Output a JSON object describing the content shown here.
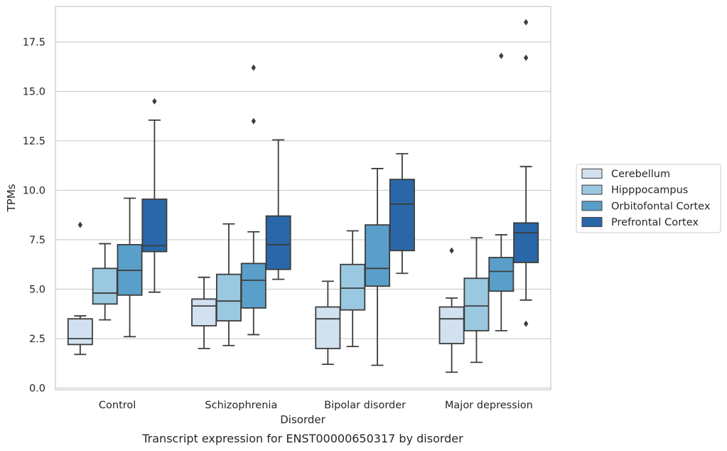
{
  "chart_data": {
    "type": "box",
    "title": "",
    "caption": "Transcript expression for ENST00000650317 by disorder",
    "xlabel": "Disorder",
    "ylabel": "TPMs",
    "ylim": [
      0,
      19.3
    ],
    "yticks": [
      0.0,
      2.5,
      5.0,
      7.5,
      10.0,
      12.5,
      15.0,
      17.5
    ],
    "ytick_labels": [
      "0.0",
      "2.5",
      "5.0",
      "7.5",
      "10.0",
      "12.5",
      "15.0",
      "17.5"
    ],
    "grid": "horizontal",
    "legend_position": "right",
    "categories": [
      "Control",
      "Schizophrenia",
      "Bipolar disorder",
      "Major depression"
    ],
    "series": [
      {
        "name": "Cerebellum",
        "color": "#d1e1ef",
        "boxes": [
          {
            "whisker_low": 1.7,
            "q1": 2.2,
            "median": 2.5,
            "q3": 3.5,
            "whisker_high": 3.65,
            "outliers": [
              8.25
            ]
          },
          {
            "whisker_low": 2.0,
            "q1": 3.15,
            "median": 4.15,
            "q3": 4.5,
            "whisker_high": 5.6,
            "outliers": []
          },
          {
            "whisker_low": 1.2,
            "q1": 2.0,
            "median": 3.5,
            "q3": 4.1,
            "whisker_high": 5.4,
            "outliers": []
          },
          {
            "whisker_low": 0.8,
            "q1": 2.25,
            "median": 3.5,
            "q3": 4.1,
            "whisker_high": 4.55,
            "outliers": [
              6.95
            ]
          }
        ]
      },
      {
        "name": "Hipppocampus",
        "color": "#9ac8e0",
        "boxes": [
          {
            "whisker_low": 3.45,
            "q1": 4.25,
            "median": 4.8,
            "q3": 6.05,
            "whisker_high": 7.3,
            "outliers": []
          },
          {
            "whisker_low": 2.15,
            "q1": 3.4,
            "median": 4.4,
            "q3": 5.75,
            "whisker_high": 8.3,
            "outliers": []
          },
          {
            "whisker_low": 2.1,
            "q1": 3.95,
            "median": 5.05,
            "q3": 6.25,
            "whisker_high": 7.95,
            "outliers": []
          },
          {
            "whisker_low": 1.3,
            "q1": 2.9,
            "median": 4.15,
            "q3": 5.55,
            "whisker_high": 7.6,
            "outliers": []
          }
        ]
      },
      {
        "name": "Orbitofontal Cortex",
        "color": "#5a9fc9",
        "boxes": [
          {
            "whisker_low": 2.6,
            "q1": 4.7,
            "median": 5.95,
            "q3": 7.25,
            "whisker_high": 9.6,
            "outliers": []
          },
          {
            "whisker_low": 2.7,
            "q1": 4.05,
            "median": 5.45,
            "q3": 6.3,
            "whisker_high": 7.9,
            "outliers": [
              13.5,
              16.2
            ]
          },
          {
            "whisker_low": 1.15,
            "q1": 5.15,
            "median": 6.05,
            "q3": 8.25,
            "whisker_high": 11.1,
            "outliers": []
          },
          {
            "whisker_low": 2.9,
            "q1": 4.9,
            "median": 5.9,
            "q3": 6.6,
            "whisker_high": 7.75,
            "outliers": [
              16.8
            ]
          }
        ]
      },
      {
        "name": "Prefrontal Cortex",
        "color": "#2a67a8",
        "boxes": [
          {
            "whisker_low": 4.85,
            "q1": 6.9,
            "median": 7.2,
            "q3": 9.55,
            "whisker_high": 13.55,
            "outliers": [
              14.5
            ]
          },
          {
            "whisker_low": 5.5,
            "q1": 6.0,
            "median": 7.25,
            "q3": 8.7,
            "whisker_high": 12.55,
            "outliers": []
          },
          {
            "whisker_low": 5.8,
            "q1": 6.95,
            "median": 9.3,
            "q3": 10.55,
            "whisker_high": 11.85,
            "outliers": []
          },
          {
            "whisker_low": 4.45,
            "q1": 6.35,
            "median": 7.85,
            "q3": 8.35,
            "whisker_high": 11.2,
            "outliers": [
              3.25,
              16.7,
              18.5
            ]
          }
        ]
      }
    ]
  }
}
